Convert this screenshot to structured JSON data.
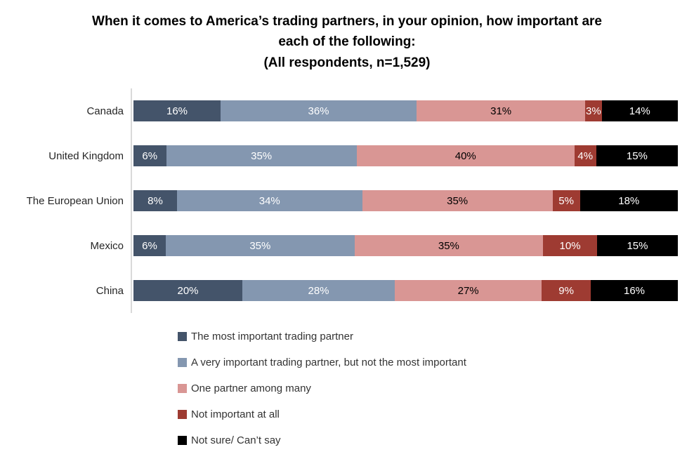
{
  "title": {
    "line1": "When it comes to America’s trading partners, in your opinion, how important are",
    "line2": "each of the following:",
    "line3": "(All respondents, n=1,529)"
  },
  "colors": {
    "axis_line": "#D9D9D9",
    "background": "#FFFFFF"
  },
  "chart_data": {
    "type": "bar",
    "subtype": "stacked-horizontal",
    "title": "When it comes to America’s trading partners, in your opinion, how important are each of the following: (All respondents, n=1,529)",
    "categories": [
      "Canada",
      "United Kingdom",
      "The European Union",
      "Mexico",
      "China"
    ],
    "series": [
      {
        "name": "The most important trading partner",
        "color": "#44546A",
        "text_color": "#FFFFFF",
        "values": [
          16,
          6,
          8,
          6,
          20
        ]
      },
      {
        "name": "A very important trading partner, but not the most important",
        "color": "#8497B0",
        "text_color": "#FFFFFF",
        "values": [
          36,
          35,
          34,
          35,
          28
        ]
      },
      {
        "name": "One partner among many",
        "color": "#D99694",
        "text_color": "#000000",
        "values": [
          31,
          40,
          35,
          35,
          27
        ]
      },
      {
        "name": "Not important at all",
        "color": "#9E3B32",
        "text_color": "#FFFFFF",
        "values": [
          3,
          4,
          5,
          10,
          9
        ]
      },
      {
        "name": "Not sure/ Can’t say",
        "color": "#000000",
        "text_color": "#FFFFFF",
        "values": [
          14,
          15,
          18,
          15,
          16
        ]
      }
    ],
    "value_suffix": "%",
    "xlim": [
      0,
      100
    ],
    "grid": false,
    "legend_position": "bottom-left",
    "data_labels": "inside-center"
  }
}
